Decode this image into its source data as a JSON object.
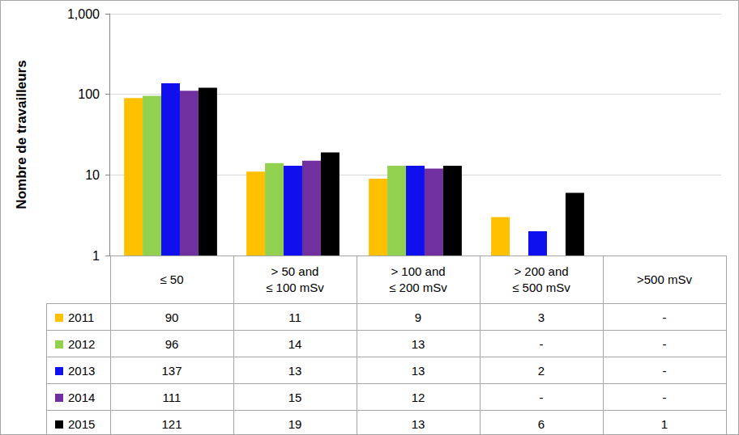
{
  "chart_data": {
    "type": "bar",
    "ylabel": "Nombre de travailleurs",
    "categories": [
      "≤ 50",
      "> 50 and\n≤ 100 mSv",
      "> 100 and\n≤ 200 mSv",
      "> 200 and\n≤ 500 mSv",
      ">500 mSv"
    ],
    "series": [
      {
        "name": "2011",
        "color": "#ffc000",
        "values": [
          90,
          11,
          9,
          3,
          null
        ],
        "value_labels": [
          "90",
          "11",
          "9",
          "3",
          "-"
        ]
      },
      {
        "name": "2012",
        "color": "#92d050",
        "values": [
          96,
          14,
          13,
          null,
          null
        ],
        "value_labels": [
          "96",
          "14",
          "13",
          "-",
          "-"
        ]
      },
      {
        "name": "2013",
        "color": "#1010ee",
        "values": [
          137,
          13,
          13,
          2,
          null
        ],
        "value_labels": [
          "137",
          "13",
          "13",
          "2",
          "-"
        ]
      },
      {
        "name": "2014",
        "color": "#7030a0",
        "values": [
          111,
          15,
          12,
          null,
          null
        ],
        "value_labels": [
          "111",
          "15",
          "12",
          "-",
          "-"
        ]
      },
      {
        "name": "2015",
        "color": "#000000",
        "values": [
          121,
          19,
          13,
          6,
          1
        ],
        "value_labels": [
          "121",
          "19",
          "13",
          "6",
          "1"
        ]
      }
    ],
    "ylim": [
      1,
      1000
    ],
    "yticks": [
      1,
      10,
      100,
      {
        "value": 1000,
        "label": "1,000"
      }
    ],
    "log": "y",
    "grid": true
  }
}
